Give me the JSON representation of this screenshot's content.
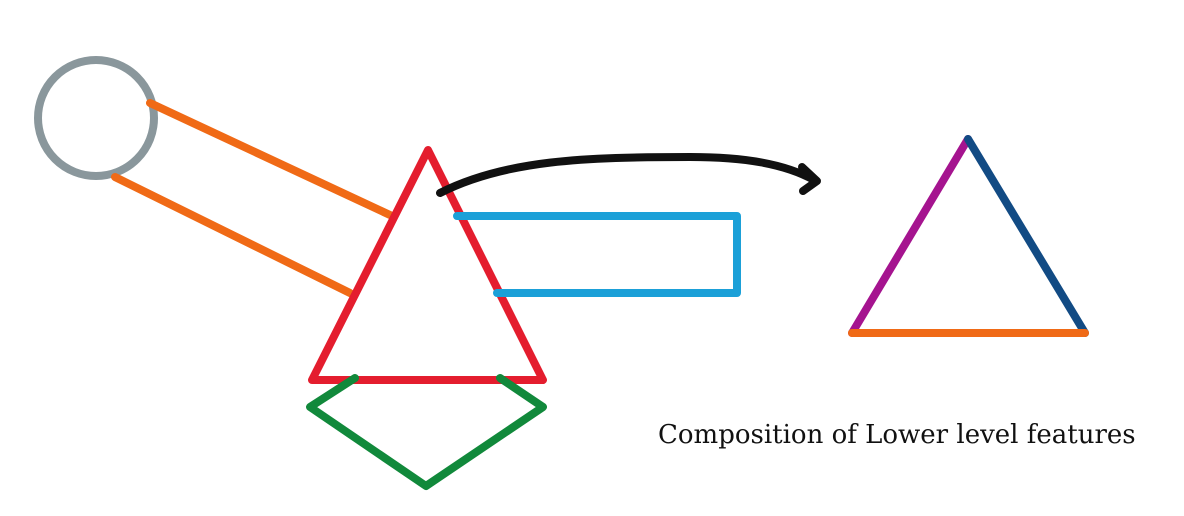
{
  "caption": "Composition of Lower level features",
  "colors": {
    "circle": "#8a979c",
    "circle_arms": "#f06a16",
    "main_triangle": "#e41d2e",
    "rectangle": "#1ba0d8",
    "diamond": "#11893b",
    "arrow": "#111111",
    "result_left_edge": "#a5148f",
    "result_right_edge": "#124b84",
    "result_base_edge": "#f06a16"
  }
}
